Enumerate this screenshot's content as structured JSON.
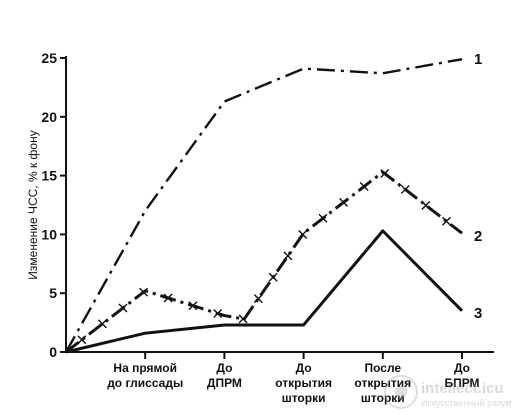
{
  "chart_data": {
    "type": "line",
    "title": "",
    "ylabel": "Изменение ЧСС, % к фону",
    "xlabel": "",
    "ylim": [
      0,
      25
    ],
    "yticks": [
      "0",
      "5",
      "10",
      "15",
      "20",
      "25"
    ],
    "categories": [
      [
        "На прямой",
        "до глиссады"
      ],
      [
        "До",
        "ДПРМ"
      ],
      [
        "До",
        "открытия",
        "шторки"
      ],
      [
        "После",
        "открытия",
        "шторки"
      ],
      [
        "До",
        "БПРМ"
      ]
    ],
    "grid": false,
    "legend": "inline labels at line ends",
    "series": [
      {
        "name": "1",
        "style": "dash-dot",
        "points": [
          [
            0,
            0
          ],
          [
            1,
            12.0
          ],
          [
            2,
            21.3
          ],
          [
            3,
            24.1
          ],
          [
            4,
            23.7
          ],
          [
            5,
            24.9
          ]
        ]
      },
      {
        "name": "2",
        "style": "dash-dot with x markers",
        "points": [
          [
            0,
            0
          ],
          [
            1,
            5.2
          ],
          [
            2,
            3.1
          ],
          [
            2.25,
            2.8
          ],
          [
            3,
            10.1
          ],
          [
            4,
            15.3
          ],
          [
            5,
            10.1
          ]
        ]
      },
      {
        "name": "3",
        "style": "solid",
        "points": [
          [
            0,
            0
          ],
          [
            1,
            1.6
          ],
          [
            2,
            2.3
          ],
          [
            3,
            2.3
          ],
          [
            4,
            10.3
          ],
          [
            5,
            3.5
          ]
        ]
      }
    ],
    "colors": {
      "line": "#111111",
      "background": "#ffffff"
    }
  },
  "watermark": {
    "site": "intellect.icu",
    "tagline": "Искусственный разум"
  }
}
